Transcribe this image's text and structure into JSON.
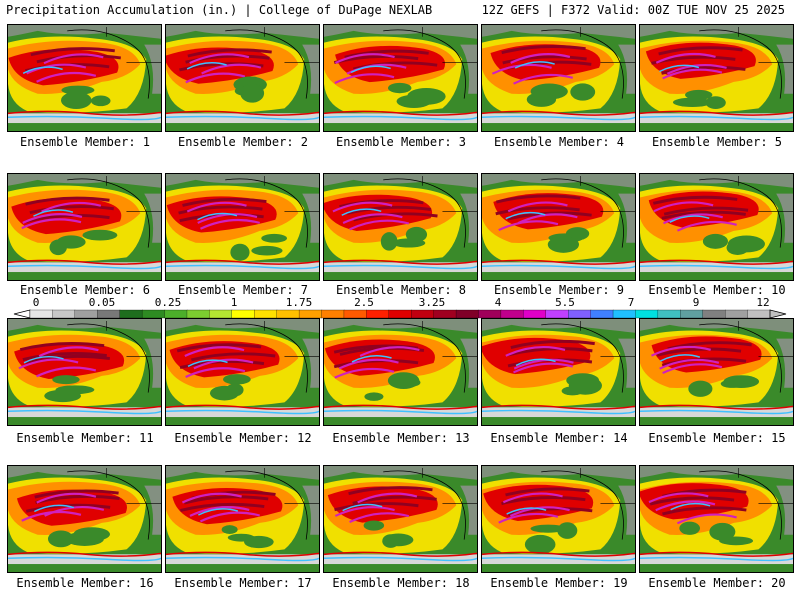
{
  "header": {
    "left": "Precipitation Accumulation (in.) | College of DuPage NEXLAB",
    "right": "12Z GEFS | F372 Valid: 00Z TUE NOV 25 2025"
  },
  "members": [
    "Ensemble Member: 1",
    "Ensemble Member: 2",
    "Ensemble Member: 3",
    "Ensemble Member: 4",
    "Ensemble Member: 5",
    "Ensemble Member: 6",
    "Ensemble Member: 7",
    "Ensemble Member: 8",
    "Ensemble Member: 9",
    "Ensemble Member: 10",
    "Ensemble Member: 11",
    "Ensemble Member: 12",
    "Ensemble Member: 13",
    "Ensemble Member: 14",
    "Ensemble Member: 15",
    "Ensemble Member: 16",
    "Ensemble Member: 17",
    "Ensemble Member: 18",
    "Ensemble Member: 19",
    "Ensemble Member: 20"
  ],
  "colorbar": {
    "ticks": [
      "0",
      "0.05",
      "0.25",
      "1",
      "1.75",
      "2.5",
      "3.25",
      "4",
      "5.5",
      "7",
      "9",
      "12"
    ],
    "colors": [
      "#e6e6e6",
      "#c8c8c8",
      "#a0a0a0",
      "#787878",
      "#1e6e1e",
      "#2e8b22",
      "#4caf2a",
      "#7ccd30",
      "#b4e632",
      "#ffff00",
      "#ffe000",
      "#ffc000",
      "#ffa000",
      "#ff8000",
      "#ff5a00",
      "#ff2000",
      "#e00000",
      "#c00010",
      "#a00020",
      "#800028",
      "#a0005a",
      "#c0008c",
      "#e000c8",
      "#c040ff",
      "#8060ff",
      "#4080ff",
      "#20c0ff",
      "#00e0e0",
      "#40c0c0",
      "#60a0a0",
      "#808080",
      "#a0a0a0",
      "#c0c0c0"
    ]
  },
  "palette": {
    "land": "#3a8a2a",
    "gray": "#909090",
    "light": "#d8d8d8",
    "yellow": "#f0e000",
    "orange": "#ff9000",
    "red": "#e00000",
    "darkred": "#900020",
    "magenta": "#d020c0",
    "cyan": "#40c0ff",
    "border": "#000000"
  }
}
